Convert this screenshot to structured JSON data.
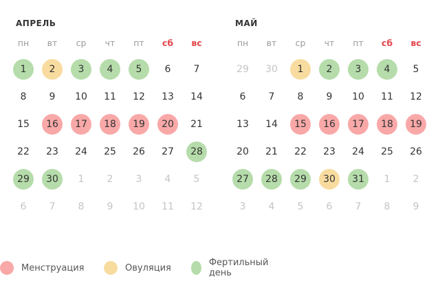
{
  "weekdays": [
    "пн",
    "вт",
    "ср",
    "чт",
    "пт",
    "сб",
    "вс"
  ],
  "weekend_color": "#e5474c",
  "status_colors": {
    "menstruation": "#f9a8a8",
    "ovulation": "#f8dc9f",
    "fertile": "#b5dcaa"
  },
  "months": [
    {
      "title": "АПРЕЛЬ",
      "weeks": [
        [
          {
            "d": "1",
            "s": "fertile"
          },
          {
            "d": "2",
            "s": "ovulation"
          },
          {
            "d": "3",
            "s": "fertile"
          },
          {
            "d": "4",
            "s": "fertile"
          },
          {
            "d": "5",
            "s": "fertile"
          },
          {
            "d": "6"
          },
          {
            "d": "7"
          }
        ],
        [
          {
            "d": "8"
          },
          {
            "d": "9"
          },
          {
            "d": "10"
          },
          {
            "d": "11"
          },
          {
            "d": "12"
          },
          {
            "d": "13"
          },
          {
            "d": "14"
          }
        ],
        [
          {
            "d": "15"
          },
          {
            "d": "16",
            "s": "menstruation"
          },
          {
            "d": "17",
            "s": "menstruation"
          },
          {
            "d": "18",
            "s": "menstruation"
          },
          {
            "d": "19",
            "s": "menstruation"
          },
          {
            "d": "20",
            "s": "menstruation"
          },
          {
            "d": "21"
          }
        ],
        [
          {
            "d": "22"
          },
          {
            "d": "23"
          },
          {
            "d": "24"
          },
          {
            "d": "25"
          },
          {
            "d": "26"
          },
          {
            "d": "27"
          },
          {
            "d": "28",
            "s": "fertile"
          }
        ],
        [
          {
            "d": "29",
            "s": "fertile"
          },
          {
            "d": "30",
            "s": "fertile"
          },
          {
            "d": "1",
            "o": true
          },
          {
            "d": "2",
            "o": true
          },
          {
            "d": "3",
            "o": true
          },
          {
            "d": "4",
            "o": true
          },
          {
            "d": "5",
            "o": true
          }
        ],
        [
          {
            "d": "6",
            "o": true
          },
          {
            "d": "7",
            "o": true
          },
          {
            "d": "8",
            "o": true
          },
          {
            "d": "9",
            "o": true
          },
          {
            "d": "10",
            "o": true
          },
          {
            "d": "11",
            "o": true
          },
          {
            "d": "12",
            "o": true
          }
        ]
      ]
    },
    {
      "title": "МАЙ",
      "weeks": [
        [
          {
            "d": "29",
            "o": true
          },
          {
            "d": "30",
            "o": true
          },
          {
            "d": "1",
            "s": "ovulation"
          },
          {
            "d": "2",
            "s": "fertile"
          },
          {
            "d": "3",
            "s": "fertile"
          },
          {
            "d": "4",
            "s": "fertile"
          },
          {
            "d": "5"
          }
        ],
        [
          {
            "d": "6"
          },
          {
            "d": "7"
          },
          {
            "d": "8"
          },
          {
            "d": "9"
          },
          {
            "d": "10"
          },
          {
            "d": "11"
          },
          {
            "d": "12"
          }
        ],
        [
          {
            "d": "13"
          },
          {
            "d": "14"
          },
          {
            "d": "15",
            "s": "menstruation"
          },
          {
            "d": "16",
            "s": "menstruation"
          },
          {
            "d": "17",
            "s": "menstruation"
          },
          {
            "d": "18",
            "s": "menstruation"
          },
          {
            "d": "19",
            "s": "menstruation"
          }
        ],
        [
          {
            "d": "20"
          },
          {
            "d": "21"
          },
          {
            "d": "22"
          },
          {
            "d": "23"
          },
          {
            "d": "24"
          },
          {
            "d": "25"
          },
          {
            "d": "26"
          }
        ],
        [
          {
            "d": "27",
            "s": "fertile"
          },
          {
            "d": "28",
            "s": "fertile"
          },
          {
            "d": "29",
            "s": "fertile"
          },
          {
            "d": "30",
            "s": "ovulation"
          },
          {
            "d": "31",
            "s": "fertile"
          },
          {
            "d": "1",
            "o": true
          },
          {
            "d": "2",
            "o": true
          }
        ],
        [
          {
            "d": "3",
            "o": true
          },
          {
            "d": "4",
            "o": true
          },
          {
            "d": "5",
            "o": true
          },
          {
            "d": "6",
            "o": true
          },
          {
            "d": "7",
            "o": true
          },
          {
            "d": "8",
            "o": true
          },
          {
            "d": "9",
            "o": true
          }
        ]
      ]
    }
  ],
  "legend": [
    {
      "key": "menstruation",
      "label": "Менструация"
    },
    {
      "key": "ovulation",
      "label": "Овуляция"
    },
    {
      "key": "fertile",
      "label": "Фертильный день"
    }
  ]
}
